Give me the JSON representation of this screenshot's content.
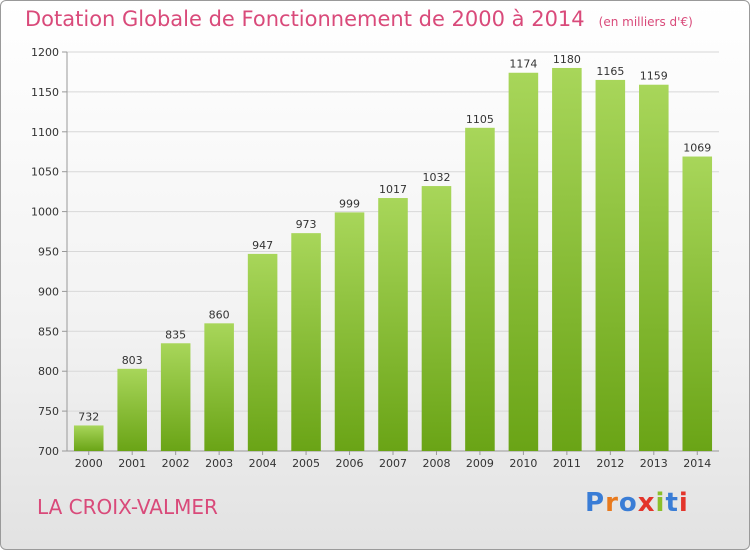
{
  "title": "Dotation Globale de Fonctionnement de 2000 à 2014",
  "unit": "(en milliers d'€)",
  "place": "LA CROIX-VALMER",
  "logo": {
    "text": "Proxiti",
    "letter_colors": [
      "#3a7dd6",
      "#e87a1e",
      "#3a7dd6",
      "#e3352b",
      "#8bbf2a",
      "#3a7dd6",
      "#e3352b"
    ]
  },
  "colors": {
    "bar_light": "#a8d65a",
    "bar_dark": "#6aa416",
    "grid": "#d8d8d8",
    "axis": "#999999",
    "text": "#d94a7a"
  },
  "chart_data": {
    "type": "bar",
    "title": "Dotation Globale de Fonctionnement de 2000 à 2014",
    "xlabel": "",
    "ylabel": "",
    "categories": [
      "2000",
      "2001",
      "2002",
      "2003",
      "2004",
      "2005",
      "2006",
      "2007",
      "2008",
      "2009",
      "2010",
      "2011",
      "2012",
      "2013",
      "2014"
    ],
    "values": [
      732,
      803,
      835,
      860,
      947,
      973,
      999,
      1017,
      1032,
      1105,
      1174,
      1180,
      1165,
      1159,
      1069
    ],
    "ylim": [
      700,
      1200
    ],
    "yticks": [
      700,
      750,
      800,
      850,
      900,
      950,
      1000,
      1050,
      1100,
      1150,
      1200
    ],
    "grid": true,
    "legend": "none"
  }
}
